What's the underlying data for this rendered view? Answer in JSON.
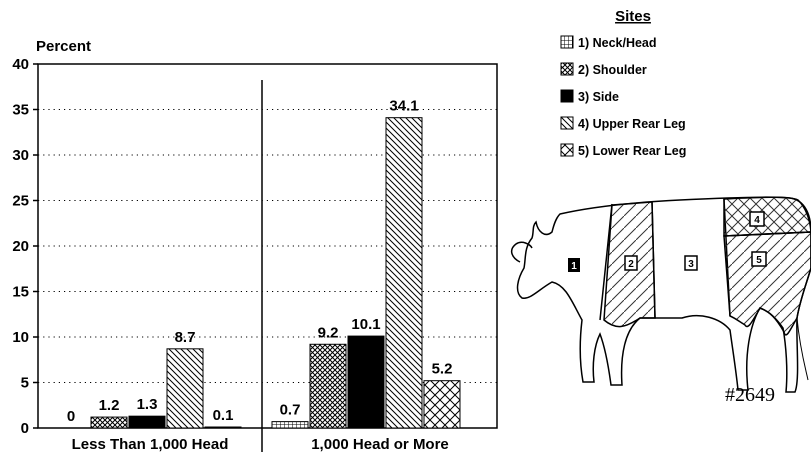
{
  "chart_data": {
    "type": "bar",
    "ylabel": "Percent",
    "ylim": [
      0,
      40
    ],
    "yticks": [
      0,
      5,
      10,
      15,
      20,
      25,
      30,
      35,
      40
    ],
    "grid": "horizontal dotted",
    "categories": [
      "Less Than 1,000 Head",
      "1,000 Head or More"
    ],
    "series": [
      {
        "name": "1) Neck/Head",
        "values": [
          0,
          0.7
        ],
        "labels": [
          "0",
          "0.7"
        ],
        "pattern": "grid"
      },
      {
        "name": "2) Shoulder",
        "values": [
          1.2,
          9.2
        ],
        "labels": [
          "1.2",
          "9.2"
        ],
        "pattern": "crosshatch-dense"
      },
      {
        "name": "3) Side",
        "values": [
          1.3,
          10.1
        ],
        "labels": [
          "1.3",
          "10.1"
        ],
        "pattern": "solid"
      },
      {
        "name": "4) Upper Rear Leg",
        "values": [
          8.7,
          34.1
        ],
        "labels": [
          "8.7",
          "34.1"
        ],
        "pattern": "diagonal"
      },
      {
        "name": "5) Lower Rear Leg",
        "values": [
          0.1,
          5.2
        ],
        "labels": [
          "0.1",
          "5.2"
        ],
        "pattern": "crosshatch-wide"
      }
    ],
    "legend": {
      "title": "Sites",
      "position": "top-right"
    },
    "image_id": "#2649",
    "illustration_labels": [
      "1",
      "2",
      "3",
      "4",
      "5"
    ]
  }
}
